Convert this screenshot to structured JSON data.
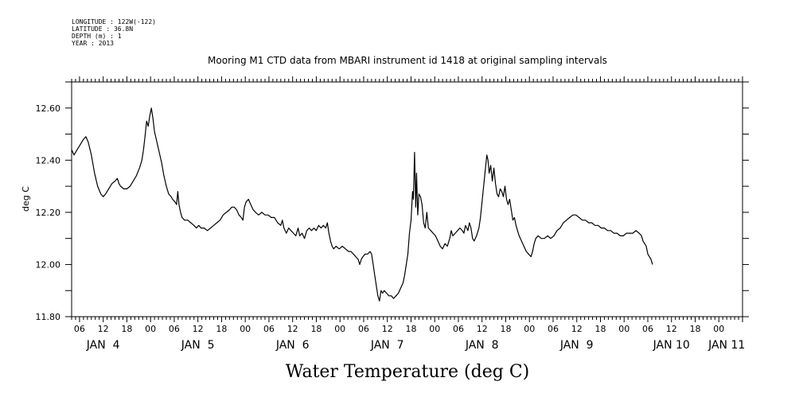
{
  "header": {
    "longitude": "LONGITUDE : 122W(-122)",
    "latitude": "LATITUDE : 36.8N",
    "depth": "DEPTH (m) : 1",
    "year": "YEAR : 2013"
  },
  "chart_data": {
    "type": "line",
    "title": "Mooring M1 CTD data from MBARI instrument id 1418 at original sampling intervals",
    "xlabel": "Water Temperature (deg C)",
    "ylabel": "deg C",
    "x_unit": "hours after 2013-01-04 00:00",
    "xlim": [
      4,
      174
    ],
    "ylim": [
      11.8,
      12.7
    ],
    "grid": false,
    "y_ticks": [
      {
        "value": 11.8,
        "label": "11.80"
      },
      {
        "value": 12.0,
        "label": "12.00"
      },
      {
        "value": 12.2,
        "label": "12.20"
      },
      {
        "value": 12.4,
        "label": "12.40"
      },
      {
        "value": 12.6,
        "label": "12.60"
      }
    ],
    "x_ticks": [
      {
        "hour": 6,
        "label": "06"
      },
      {
        "hour": 12,
        "label": "12"
      },
      {
        "hour": 18,
        "label": "18"
      },
      {
        "hour": 24,
        "label": "00"
      },
      {
        "hour": 30,
        "label": "06"
      },
      {
        "hour": 36,
        "label": "12"
      },
      {
        "hour": 42,
        "label": "18"
      },
      {
        "hour": 48,
        "label": "00"
      },
      {
        "hour": 54,
        "label": "06"
      },
      {
        "hour": 60,
        "label": "12"
      },
      {
        "hour": 66,
        "label": "18"
      },
      {
        "hour": 72,
        "label": "00"
      },
      {
        "hour": 78,
        "label": "06"
      },
      {
        "hour": 84,
        "label": "12"
      },
      {
        "hour": 90,
        "label": "18"
      },
      {
        "hour": 96,
        "label": "00"
      },
      {
        "hour": 102,
        "label": "06"
      },
      {
        "hour": 108,
        "label": "12"
      },
      {
        "hour": 114,
        "label": "18"
      },
      {
        "hour": 120,
        "label": "00"
      },
      {
        "hour": 126,
        "label": "06"
      },
      {
        "hour": 132,
        "label": "12"
      },
      {
        "hour": 138,
        "label": "18"
      },
      {
        "hour": 144,
        "label": "00"
      },
      {
        "hour": 150,
        "label": "06"
      },
      {
        "hour": 156,
        "label": "12"
      },
      {
        "hour": 162,
        "label": "18"
      },
      {
        "hour": 168,
        "label": "00"
      }
    ],
    "day_labels": [
      {
        "hour": 12,
        "label": "JAN  4"
      },
      {
        "hour": 36,
        "label": "JAN  5"
      },
      {
        "hour": 60,
        "label": "JAN  6"
      },
      {
        "hour": 84,
        "label": "JAN  7"
      },
      {
        "hour": 108,
        "label": "JAN  8"
      },
      {
        "hour": 132,
        "label": "JAN  9"
      },
      {
        "hour": 156,
        "label": "JAN 10"
      },
      {
        "hour": 170,
        "label": "JAN 11"
      }
    ],
    "series": [
      {
        "name": "",
        "points": [
          [
            4.0,
            12.44
          ],
          [
            4.6,
            12.42
          ],
          [
            5.4,
            12.44
          ],
          [
            6.2,
            12.46
          ],
          [
            7.0,
            12.48
          ],
          [
            7.6,
            12.49
          ],
          [
            8.2,
            12.47
          ],
          [
            9.0,
            12.42
          ],
          [
            9.8,
            12.35
          ],
          [
            10.6,
            12.3
          ],
          [
            11.4,
            12.27
          ],
          [
            12.0,
            12.26
          ],
          [
            12.6,
            12.27
          ],
          [
            13.4,
            12.29
          ],
          [
            14.2,
            12.31
          ],
          [
            15.0,
            12.32
          ],
          [
            15.6,
            12.33
          ],
          [
            16.0,
            12.31
          ],
          [
            16.4,
            12.3
          ],
          [
            17.2,
            12.29
          ],
          [
            18.0,
            12.29
          ],
          [
            18.8,
            12.3
          ],
          [
            19.6,
            12.32
          ],
          [
            20.4,
            12.34
          ],
          [
            21.2,
            12.37
          ],
          [
            21.8,
            12.4
          ],
          [
            22.2,
            12.44
          ],
          [
            22.6,
            12.49
          ],
          [
            23.0,
            12.55
          ],
          [
            23.4,
            12.53
          ],
          [
            23.8,
            12.57
          ],
          [
            24.2,
            12.6
          ],
          [
            24.6,
            12.56
          ],
          [
            25.0,
            12.51
          ],
          [
            25.6,
            12.47
          ],
          [
            26.2,
            12.43
          ],
          [
            26.8,
            12.39
          ],
          [
            27.4,
            12.34
          ],
          [
            28.0,
            12.3
          ],
          [
            28.6,
            12.27
          ],
          [
            29.2,
            12.26
          ],
          [
            29.6,
            12.25
          ],
          [
            30.2,
            12.24
          ],
          [
            30.6,
            12.23
          ],
          [
            30.9,
            12.28
          ],
          [
            31.2,
            12.23
          ],
          [
            31.6,
            12.2
          ],
          [
            32.0,
            12.18
          ],
          [
            32.6,
            12.17
          ],
          [
            33.4,
            12.17
          ],
          [
            34.2,
            12.16
          ],
          [
            35.0,
            12.15
          ],
          [
            35.6,
            12.14
          ],
          [
            36.2,
            12.15
          ],
          [
            36.8,
            12.14
          ],
          [
            37.6,
            12.14
          ],
          [
            38.4,
            12.13
          ],
          [
            39.2,
            12.14
          ],
          [
            40.0,
            12.15
          ],
          [
            40.8,
            12.16
          ],
          [
            41.6,
            12.17
          ],
          [
            42.4,
            12.19
          ],
          [
            43.2,
            12.2
          ],
          [
            44.0,
            12.21
          ],
          [
            44.6,
            12.22
          ],
          [
            45.2,
            12.22
          ],
          [
            45.8,
            12.21
          ],
          [
            46.4,
            12.19
          ],
          [
            47.0,
            12.18
          ],
          [
            47.4,
            12.17
          ],
          [
            47.8,
            12.22
          ],
          [
            48.2,
            12.24
          ],
          [
            48.8,
            12.25
          ],
          [
            49.4,
            12.23
          ],
          [
            50.0,
            12.21
          ],
          [
            50.6,
            12.2
          ],
          [
            51.4,
            12.19
          ],
          [
            52.2,
            12.2
          ],
          [
            53.0,
            12.19
          ],
          [
            53.8,
            12.19
          ],
          [
            54.6,
            12.18
          ],
          [
            55.4,
            12.18
          ],
          [
            56.2,
            12.16
          ],
          [
            57.0,
            12.15
          ],
          [
            57.4,
            12.17
          ],
          [
            57.8,
            12.14
          ],
          [
            58.4,
            12.12
          ],
          [
            59.0,
            12.14
          ],
          [
            59.6,
            12.13
          ],
          [
            60.2,
            12.12
          ],
          [
            60.8,
            12.11
          ],
          [
            61.4,
            12.14
          ],
          [
            61.8,
            12.11
          ],
          [
            62.4,
            12.12
          ],
          [
            63.0,
            12.1
          ],
          [
            63.6,
            12.13
          ],
          [
            64.2,
            12.14
          ],
          [
            64.8,
            12.13
          ],
          [
            65.4,
            12.14
          ],
          [
            66.0,
            12.13
          ],
          [
            66.6,
            12.15
          ],
          [
            67.2,
            12.14
          ],
          [
            67.8,
            12.15
          ],
          [
            68.4,
            12.14
          ],
          [
            68.8,
            12.16
          ],
          [
            69.2,
            12.12
          ],
          [
            69.6,
            12.09
          ],
          [
            70.0,
            12.07
          ],
          [
            70.4,
            12.06
          ],
          [
            71.0,
            12.07
          ],
          [
            71.8,
            12.06
          ],
          [
            72.6,
            12.07
          ],
          [
            73.4,
            12.06
          ],
          [
            74.2,
            12.05
          ],
          [
            74.8,
            12.05
          ],
          [
            75.4,
            12.04
          ],
          [
            76.0,
            12.03
          ],
          [
            76.6,
            12.02
          ],
          [
            77.0,
            12.0
          ],
          [
            77.4,
            12.02
          ],
          [
            77.8,
            12.03
          ],
          [
            78.4,
            12.04
          ],
          [
            79.0,
            12.04
          ],
          [
            79.6,
            12.05
          ],
          [
            80.0,
            12.04
          ],
          [
            80.4,
            12.0
          ],
          [
            80.8,
            11.96
          ],
          [
            81.2,
            11.92
          ],
          [
            81.6,
            11.88
          ],
          [
            82.0,
            11.86
          ],
          [
            82.4,
            11.9
          ],
          [
            82.8,
            11.89
          ],
          [
            83.2,
            11.9
          ],
          [
            83.8,
            11.89
          ],
          [
            84.4,
            11.88
          ],
          [
            85.0,
            11.88
          ],
          [
            85.6,
            11.87
          ],
          [
            86.2,
            11.88
          ],
          [
            86.8,
            11.89
          ],
          [
            87.4,
            11.91
          ],
          [
            88.0,
            11.93
          ],
          [
            88.4,
            11.96
          ],
          [
            88.8,
            12.0
          ],
          [
            89.2,
            12.04
          ],
          [
            89.6,
            12.12
          ],
          [
            90.0,
            12.17
          ],
          [
            90.4,
            12.28
          ],
          [
            90.6,
            12.25
          ],
          [
            90.9,
            12.43
          ],
          [
            91.2,
            12.22
          ],
          [
            91.4,
            12.35
          ],
          [
            91.7,
            12.19
          ],
          [
            92.0,
            12.27
          ],
          [
            92.4,
            12.26
          ],
          [
            92.8,
            12.23
          ],
          [
            93.2,
            12.16
          ],
          [
            93.6,
            12.14
          ],
          [
            94.0,
            12.2
          ],
          [
            94.4,
            12.14
          ],
          [
            95.0,
            12.13
          ],
          [
            95.6,
            12.12
          ],
          [
            96.2,
            12.11
          ],
          [
            96.8,
            12.09
          ],
          [
            97.4,
            12.07
          ],
          [
            98.0,
            12.06
          ],
          [
            98.6,
            12.08
          ],
          [
            99.2,
            12.07
          ],
          [
            99.8,
            12.1
          ],
          [
            100.2,
            12.13
          ],
          [
            100.6,
            12.11
          ],
          [
            101.2,
            12.12
          ],
          [
            101.8,
            12.13
          ],
          [
            102.4,
            12.14
          ],
          [
            103.0,
            12.13
          ],
          [
            103.4,
            12.12
          ],
          [
            103.8,
            12.15
          ],
          [
            104.4,
            12.13
          ],
          [
            104.8,
            12.16
          ],
          [
            105.2,
            12.14
          ],
          [
            105.6,
            12.1
          ],
          [
            106.0,
            12.09
          ],
          [
            106.6,
            12.11
          ],
          [
            107.2,
            12.14
          ],
          [
            107.6,
            12.18
          ],
          [
            108.0,
            12.24
          ],
          [
            108.4,
            12.3
          ],
          [
            108.8,
            12.36
          ],
          [
            109.2,
            12.42
          ],
          [
            109.5,
            12.4
          ],
          [
            109.8,
            12.35
          ],
          [
            110.2,
            12.38
          ],
          [
            110.6,
            12.32
          ],
          [
            111.0,
            12.37
          ],
          [
            111.4,
            12.31
          ],
          [
            111.8,
            12.27
          ],
          [
            112.2,
            12.26
          ],
          [
            112.6,
            12.29
          ],
          [
            113.0,
            12.28
          ],
          [
            113.4,
            12.26
          ],
          [
            113.8,
            12.3
          ],
          [
            114.2,
            12.25
          ],
          [
            114.6,
            12.23
          ],
          [
            115.0,
            12.25
          ],
          [
            115.4,
            12.21
          ],
          [
            115.8,
            12.17
          ],
          [
            116.2,
            12.18
          ],
          [
            116.6,
            12.15
          ],
          [
            117.0,
            12.13
          ],
          [
            117.4,
            12.11
          ],
          [
            118.0,
            12.09
          ],
          [
            118.6,
            12.07
          ],
          [
            119.2,
            12.05
          ],
          [
            119.8,
            12.04
          ],
          [
            120.4,
            12.03
          ],
          [
            120.8,
            12.05
          ],
          [
            121.2,
            12.08
          ],
          [
            121.6,
            12.1
          ],
          [
            122.2,
            12.11
          ],
          [
            123.0,
            12.1
          ],
          [
            123.8,
            12.1
          ],
          [
            124.6,
            12.11
          ],
          [
            125.4,
            12.1
          ],
          [
            126.2,
            12.11
          ],
          [
            127.0,
            12.13
          ],
          [
            127.8,
            12.14
          ],
          [
            128.6,
            12.16
          ],
          [
            129.4,
            12.17
          ],
          [
            130.2,
            12.18
          ],
          [
            131.0,
            12.19
          ],
          [
            131.8,
            12.19
          ],
          [
            132.6,
            12.18
          ],
          [
            133.4,
            12.17
          ],
          [
            134.2,
            12.17
          ],
          [
            135.0,
            12.16
          ],
          [
            135.8,
            12.16
          ],
          [
            136.6,
            12.15
          ],
          [
            137.4,
            12.15
          ],
          [
            138.2,
            12.14
          ],
          [
            139.0,
            12.14
          ],
          [
            139.8,
            12.13
          ],
          [
            140.6,
            12.13
          ],
          [
            141.4,
            12.12
          ],
          [
            142.2,
            12.12
          ],
          [
            143.0,
            12.11
          ],
          [
            143.8,
            12.11
          ],
          [
            144.6,
            12.12
          ],
          [
            145.4,
            12.12
          ],
          [
            146.2,
            12.12
          ],
          [
            147.0,
            12.13
          ],
          [
            147.8,
            12.12
          ],
          [
            148.4,
            12.11
          ],
          [
            148.8,
            12.09
          ],
          [
            149.2,
            12.08
          ],
          [
            149.6,
            12.07
          ],
          [
            150.0,
            12.04
          ],
          [
            150.4,
            12.03
          ],
          [
            150.8,
            12.02
          ],
          [
            151.2,
            12.0
          ]
        ]
      }
    ]
  }
}
